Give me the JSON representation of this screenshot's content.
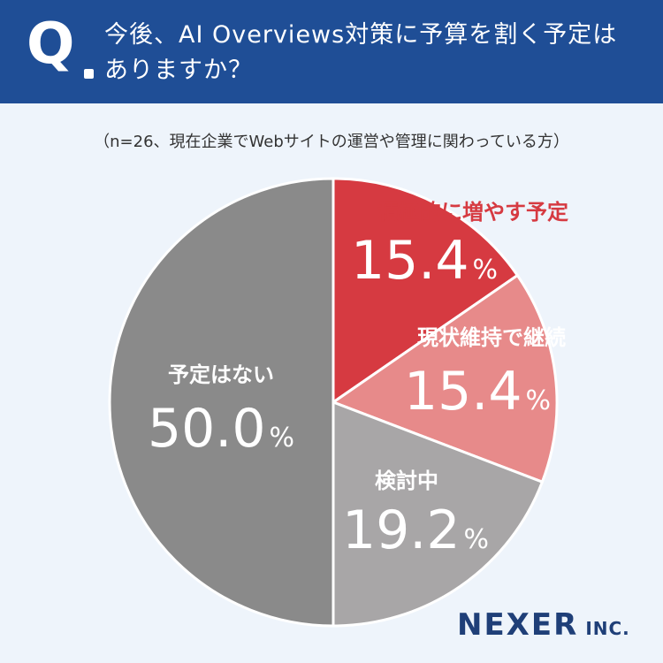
{
  "question": {
    "mark": "Q",
    "text": "今後、AI Overviews対策に予算を割く予定はありますか？"
  },
  "note": "（n=26、現在企業でWebサイトの運営や管理に関わっている方）",
  "chart_data": {
    "type": "pie",
    "slices": [
      {
        "label": "積極的に増やす予定",
        "value": 15.4,
        "value_text": "15.4",
        "color": "#d63a41",
        "label_color": "#d63a41",
        "value_color": "#ffffff"
      },
      {
        "label": "現状維持で継続",
        "value": 15.4,
        "value_text": "15.4",
        "color": "#e78a8a",
        "label_color": "#ffffff",
        "value_color": "#ffffff"
      },
      {
        "label": "検討中",
        "value": 19.2,
        "value_text": "19.2",
        "color": "#a8a6a7",
        "label_color": "#ffffff",
        "value_color": "#ffffff"
      },
      {
        "label": "予定はない",
        "value": 50.0,
        "value_text": "50.0",
        "color": "#8a8a8a",
        "label_color": "#ffffff",
        "value_color": "#ffffff"
      }
    ],
    "unit": "%"
  },
  "logo": {
    "name": "NEXER",
    "suffix": "INC."
  }
}
